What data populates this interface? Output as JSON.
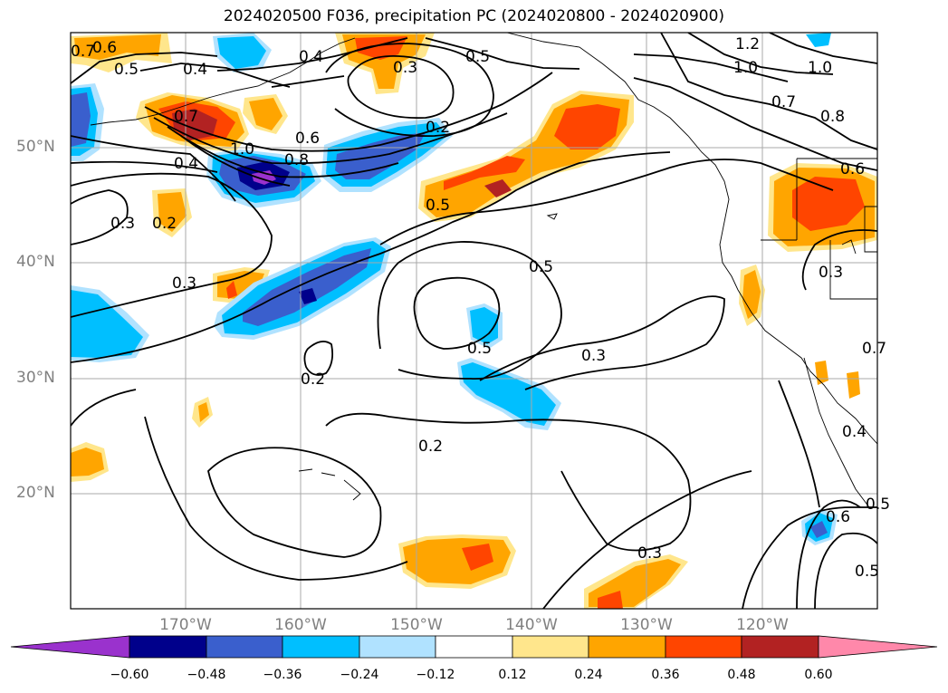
{
  "title": "2024020500 F036, precipitation PC (2024020800 - 2024020900)",
  "lat_labels": [
    "50°N",
    "40°N",
    "30°N",
    "20°N"
  ],
  "lon_labels": [
    "170°W",
    "160°W",
    "150°W",
    "140°W",
    "130°W",
    "120°W"
  ],
  "contour_labels": [
    "0.7",
    "0.6",
    "0.5",
    "0.4",
    "0.4",
    "0.3",
    "0.5",
    "1.2",
    "1.0",
    "1.0",
    "0.7",
    "0.8",
    "0.6",
    "0.7",
    "0.6",
    "1.0",
    "0.8",
    "0.4",
    "0.2",
    "0.3",
    "0.2",
    "0.5",
    "0.3",
    "0.5",
    "0.5",
    "0.3",
    "0.3",
    "0.2",
    "0.2",
    "0.3",
    "0.7",
    "0.4",
    "0.6",
    "0.5",
    "0.5"
  ],
  "colorbar": {
    "ticks": [
      "−0.60",
      "−0.48",
      "−0.36",
      "−0.24",
      "−0.12",
      "0.12",
      "0.24",
      "0.36",
      "0.48",
      "0.60"
    ],
    "colors": [
      "#9a32cd",
      "#00008b",
      "#3a5fcd",
      "#00bfff",
      "#b0e2ff",
      "#ffffff",
      "#ffe68c",
      "#ffa500",
      "#ff4500",
      "#b22222",
      "#ff88aa"
    ]
  },
  "palette": {
    "light_orange": "#ffe68c",
    "orange": "#ffa500",
    "red_orange": "#ff4500",
    "dark_red": "#b22222",
    "light_blue": "#b0e2ff",
    "sky_blue": "#00bfff",
    "royal_blue": "#3a5fcd",
    "navy": "#00008b",
    "purple": "#9a32cd"
  }
}
